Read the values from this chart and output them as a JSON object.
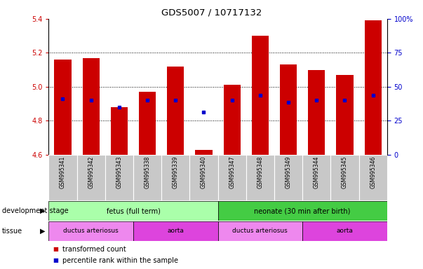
{
  "title": "GDS5007 / 10717132",
  "samples": [
    "GSM995341",
    "GSM995342",
    "GSM995343",
    "GSM995338",
    "GSM995339",
    "GSM995340",
    "GSM995347",
    "GSM995348",
    "GSM995349",
    "GSM995344",
    "GSM995345",
    "GSM995346"
  ],
  "bar_bottom": 4.6,
  "bar_tops": [
    5.16,
    5.17,
    4.88,
    4.97,
    5.12,
    4.63,
    5.01,
    5.3,
    5.13,
    5.1,
    5.07,
    5.39
  ],
  "blue_dots": [
    4.93,
    4.92,
    4.88,
    4.92,
    4.92,
    4.85,
    4.92,
    4.95,
    4.91,
    4.92,
    4.92,
    4.95
  ],
  "ylim": [
    4.6,
    5.4
  ],
  "yticks_left": [
    4.6,
    4.8,
    5.0,
    5.2,
    5.4
  ],
  "yticks_right": [
    0,
    25,
    50,
    75,
    100
  ],
  "yticks_right_labels": [
    "0",
    "25",
    "50",
    "75",
    "100%"
  ],
  "left_color": "#cc0000",
  "right_color": "#0000cc",
  "bar_color": "#cc0000",
  "dot_color": "#0000cc",
  "tick_bg_color": "#c8c8c8",
  "dev_stage_fetus_color": "#aaffaa",
  "dev_stage_neonate_color": "#44cc44",
  "tissue_ductus_color": "#ee88ee",
  "tissue_aorta_color": "#dd44dd",
  "dev_stage_label": "development stage",
  "tissue_label": "tissue",
  "fetus_label": "fetus (full term)",
  "neonate_label": "neonate (30 min after birth)",
  "ductus1_label": "ductus arteriosus",
  "aorta1_label": "aorta",
  "ductus2_label": "ductus arteriosus",
  "aorta2_label": "aorta",
  "legend_red": "transformed count",
  "legend_blue": "percentile rank within the sample"
}
